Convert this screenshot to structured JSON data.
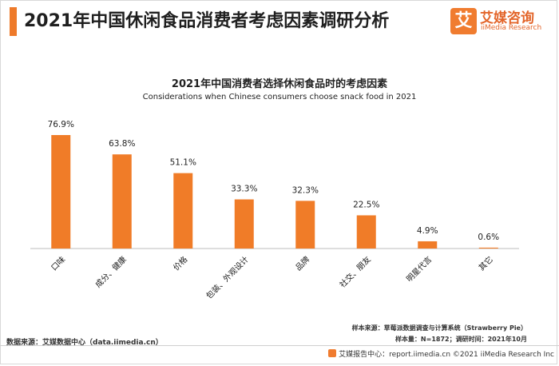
{
  "header": {
    "title": "2021年中国休闲食品消费者考虑因素调研分析",
    "accent_color": "#ee7a2a"
  },
  "brand": {
    "logo_char": "艾",
    "name": "艾媒咨询",
    "sub": "iiMedia Research"
  },
  "chart_data": {
    "type": "bar",
    "title": "2021年中国消费者选择休闲食品时的考虑因素",
    "subtitle": "Considerations when Chinese consumers choose snack food in 2021",
    "categories": [
      "口味",
      "成分、健康",
      "价格",
      "包装、外观设计",
      "品牌",
      "社交、朋友",
      "明星代言",
      "其它"
    ],
    "values": [
      76.9,
      63.8,
      51.1,
      33.3,
      32.3,
      22.5,
      4.9,
      0.6
    ],
    "value_labels": [
      "76.9%",
      "63.8%",
      "51.1%",
      "33.3%",
      "32.3%",
      "22.5%",
      "4.9%",
      "0.6%"
    ],
    "bar_color": "#f07c28",
    "ylim": [
      0,
      100
    ],
    "grid": false,
    "xlabel": "",
    "ylabel": ""
  },
  "notes": {
    "line1": "样本来源：草莓派数据调查与计算系统（Strawberry Pie）",
    "line2": "样本量：N=1872；调研时间：2021年10月"
  },
  "source": "数据来源：艾媒数据中心（data.iimedia.cn）",
  "footer": "艾媒报告中心：report.iimedia.cn   ©2021  iiMedia Research  Inc"
}
